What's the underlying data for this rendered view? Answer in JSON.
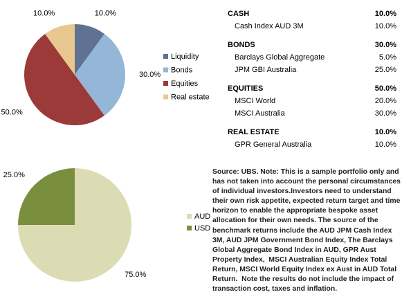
{
  "chart_data": [
    {
      "type": "pie",
      "categories": [
        "Liquidity",
        "Bonds",
        "Equities",
        "Real estate"
      ],
      "values": [
        10,
        30,
        50,
        10
      ],
      "value_labels": [
        "10.0%",
        "30.0%",
        "50.0%",
        "10.0%"
      ],
      "colors": [
        "#5f7291",
        "#95b7d7",
        "#9b3a38",
        "#e8c88f"
      ]
    },
    {
      "type": "pie",
      "categories": [
        "AUD",
        "USD"
      ],
      "values": [
        75,
        25
      ],
      "value_labels": [
        "75.0%",
        "25.0%"
      ],
      "colors": [
        "#dcdcb4",
        "#7a8f3d"
      ]
    }
  ],
  "table": {
    "sections": [
      {
        "heading": "CASH",
        "total": "10.0%",
        "rows": [
          {
            "name": "Cash Index AUD 3M",
            "value": "10.0%"
          }
        ]
      },
      {
        "heading": "BONDS",
        "total": "30.0%",
        "rows": [
          {
            "name": "Barclays Global Aggregate",
            "value": "5.0%"
          },
          {
            "name": "JPM GBI Australia",
            "value": "25.0%"
          }
        ]
      },
      {
        "heading": "EQUITIES",
        "total": "50.0%",
        "rows": [
          {
            "name": "MSCI World",
            "value": "20.0%"
          },
          {
            "name": "MSCI Australia",
            "value": "30.0%"
          }
        ]
      },
      {
        "heading": "REAL ESTATE",
        "total": "10.0%",
        "rows": [
          {
            "name": "GPR General Australia",
            "value": "10.0%"
          }
        ]
      }
    ]
  },
  "note": "Source: UBS. Note: This is a sample portfolio only and has not taken into account the personal circumstances of individual investors.Investors need to understand their own risk appetite, expected return target and time horizon to enable the appropriate bespoke asset allocation for their own needs. The source of the benchmark returns include the AUD JPM Cash Index 3M, AUD JPM Government Bond Index, The Barclays Global Aggregate Bond Index in AUD, GPR Aust Property Index,  MSCI Australian Equity Index Total Return, MSCI World Equity Index ex Aust in AUD Total Return.  Note the results do not include the impact of transaction cost, taxes and inflation."
}
